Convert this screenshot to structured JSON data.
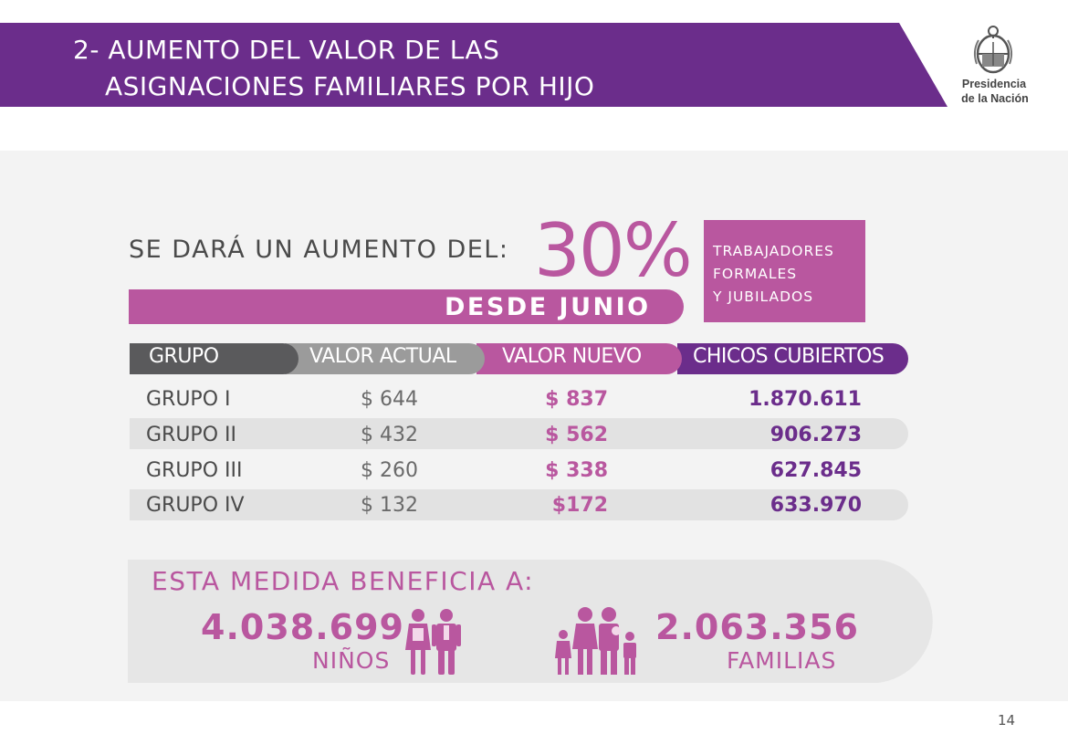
{
  "header": {
    "title_line1": "2- AUMENTO DEL VALOR DE LAS",
    "title_line2": "ASIGNACIONES FAMILIARES POR HIJO",
    "banner_color": "#6b2d8b",
    "logo_icon": "argentina-coat-of-arms-icon",
    "logo_line1": "Presidencia",
    "logo_line2": "de la Nación"
  },
  "increase": {
    "headline": "SE DARÁ UN AUMENTO DEL:",
    "percent": "30%",
    "start": "DESDE JUNIO",
    "target_lines": [
      "TRABAJADORES",
      "FORMALES",
      "Y JUBILADOS"
    ],
    "accent_color": "#b9579f"
  },
  "table": {
    "headers": [
      "GRUPO",
      "VALOR ACTUAL",
      "VALOR NUEVO",
      "CHICOS CUBIERTOS"
    ],
    "header_colors": [
      "#5a5a5c",
      "#9b9b9b",
      "#b9579f",
      "#6b2d8b"
    ],
    "rows": [
      {
        "grupo": "GRUPO I",
        "actual": "$ 644",
        "nuevo": "$ 837",
        "chicos": "1.870.611"
      },
      {
        "grupo": "GRUPO II",
        "actual": "$ 432",
        "nuevo": "$ 562",
        "chicos": "906.273"
      },
      {
        "grupo": "GRUPO III",
        "actual": "$ 260",
        "nuevo": "$ 338",
        "chicos": "627.845"
      },
      {
        "grupo": "GRUPO IV",
        "actual": "$ 132",
        "nuevo": "$172",
        "chicos": "633.970"
      }
    ]
  },
  "benefit": {
    "title": "ESTA MEDIDA BENEFICIA A:",
    "ninos_value": "4.038.699",
    "ninos_label": "NIÑOS",
    "ninos_icon": "children-icon",
    "familias_value": "2.063.356",
    "familias_label": "FAMILIAS",
    "familias_icon": "family-icon"
  },
  "page_number": "14"
}
